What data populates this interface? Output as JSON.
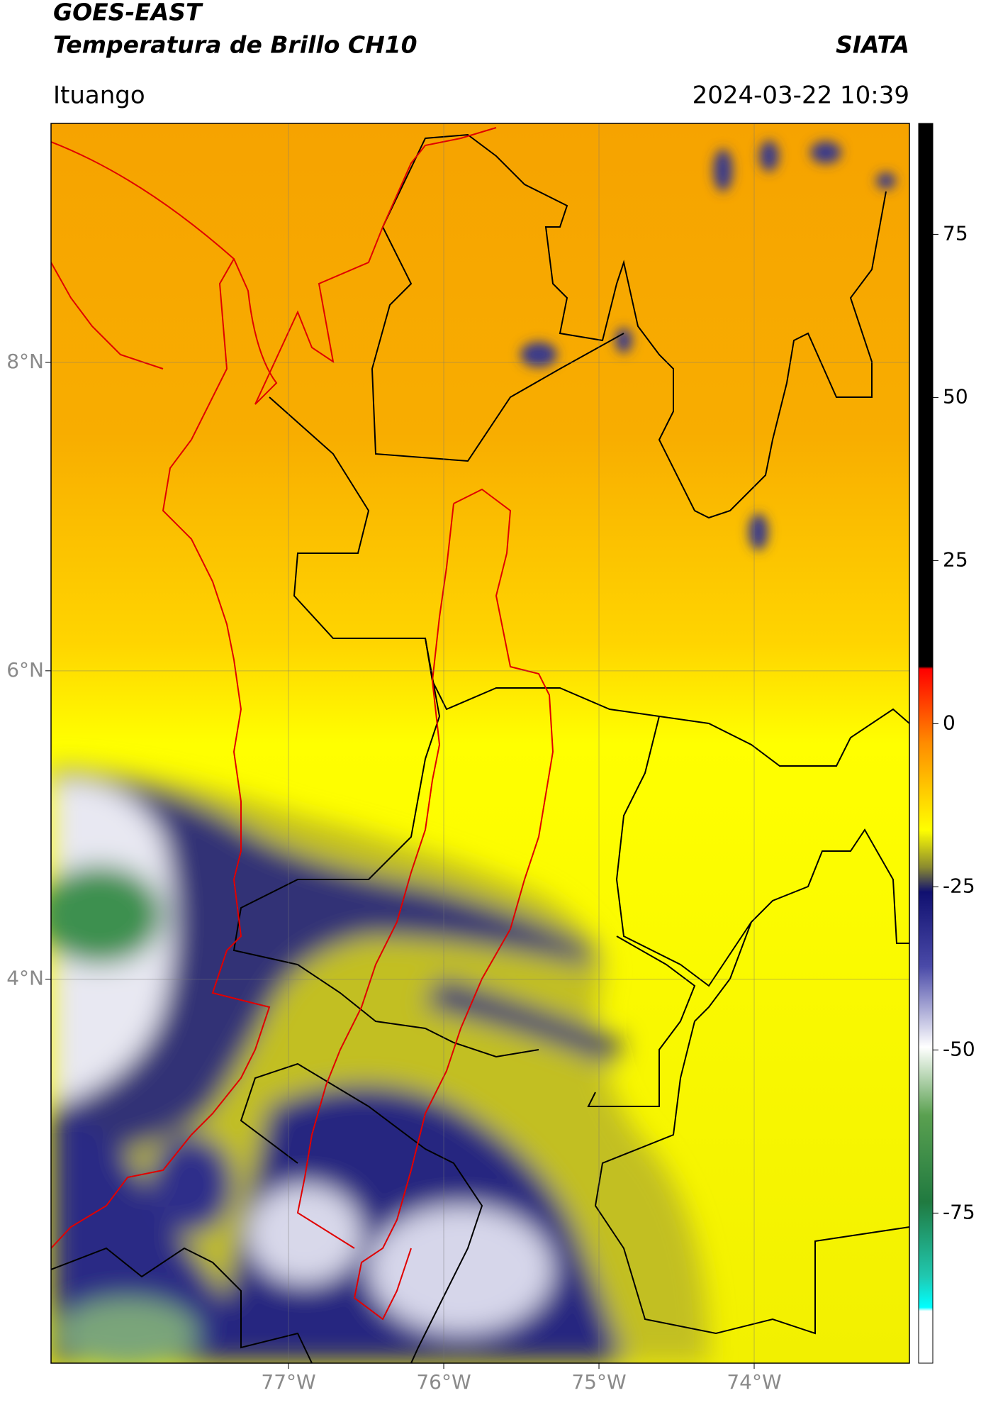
{
  "header": {
    "title": "GOES-EAST",
    "subtitle": "Temperatura de Brillo CH10",
    "source": "SIATA",
    "location": "Ituango",
    "datetime": "2024-03-22 10:39"
  },
  "map": {
    "xlim": [
      -78.53,
      -73.0
    ],
    "ylim": [
      1.51,
      9.55
    ],
    "xticks": [
      {
        "value": -77,
        "label": "77°W"
      },
      {
        "value": -76,
        "label": "76°W"
      },
      {
        "value": -75,
        "label": "75°W"
      },
      {
        "value": -74,
        "label": "74°W"
      }
    ],
    "yticks": [
      {
        "value": 8,
        "label": "8°N"
      },
      {
        "value": 6,
        "label": "6°N"
      },
      {
        "value": 4,
        "label": "4°N"
      }
    ],
    "grid": true
  },
  "colorbar": {
    "clim": [
      -98,
      92
    ],
    "ticks": [
      75,
      50,
      25,
      0,
      -25,
      -50,
      -75
    ]
  }
}
